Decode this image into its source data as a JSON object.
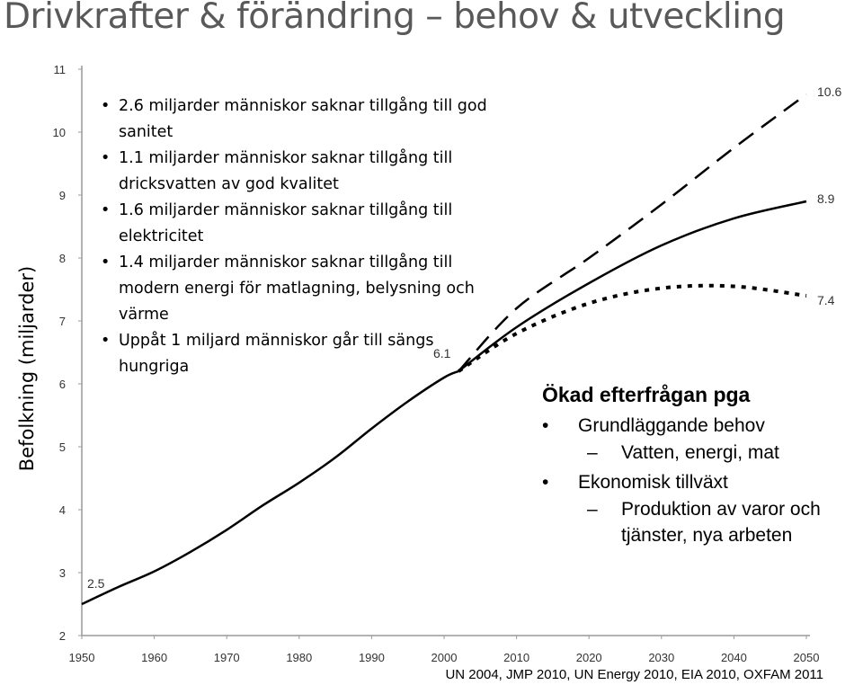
{
  "title": "Drivkrafter & förändring – behov & utveckling",
  "bullets": [
    "2.6 miljarder människor saknar tillgång till god sanitet",
    "1.1 miljarder människor saknar tillgång till dricksvatten av god kvalitet",
    "1.6 miljarder människor saknar tillgång till elektricitet",
    "1.4 miljarder människor saknar tillgång till modern energi för matlagning, belysning och värme",
    "Uppåt 1 miljard människor går till sängs hungriga"
  ],
  "demand": {
    "title": "Ökad efterfrågan pga",
    "items": [
      {
        "label": "Grundläggande behov",
        "sub": "Vatten, energi, mat"
      },
      {
        "label": "Ekonomisk tillväxt",
        "sub": "Produktion av varor och tjänster, nya arbeten"
      }
    ]
  },
  "source": "UN 2004, JMP 2010, UN Energy 2010, EIA 2010, OXFAM 2011",
  "chart_data": {
    "type": "line",
    "title": "",
    "xlabel": "",
    "ylabel": "Befolkning (miljarder)",
    "xlim": [
      1950,
      2050
    ],
    "ylim": [
      2,
      11
    ],
    "x_ticks": [
      1950,
      1960,
      1970,
      1980,
      1990,
      2000,
      2010,
      2020,
      2030,
      2040,
      2050
    ],
    "y_ticks": [
      2,
      3,
      4,
      5,
      6,
      7,
      8,
      9,
      10,
      11
    ],
    "historical": {
      "x": [
        1950,
        1955,
        1960,
        1965,
        1970,
        1975,
        1980,
        1985,
        1990,
        1995,
        2000,
        2002
      ],
      "y": [
        2.5,
        2.77,
        3.02,
        3.33,
        3.68,
        4.07,
        4.43,
        4.83,
        5.29,
        5.72,
        6.1,
        6.2
      ]
    },
    "series": [
      {
        "style": "dashed",
        "x": [
          2002,
          2010,
          2020,
          2030,
          2040,
          2050
        ],
        "y": [
          6.2,
          7.2,
          8.0,
          8.85,
          9.75,
          10.6
        ]
      },
      {
        "style": "solid",
        "x": [
          2002,
          2010,
          2020,
          2030,
          2040,
          2050
        ],
        "y": [
          6.2,
          6.9,
          7.6,
          8.2,
          8.63,
          8.9
        ]
      },
      {
        "style": "dotted",
        "x": [
          2002,
          2010,
          2020,
          2030,
          2040,
          2050
        ],
        "y": [
          6.2,
          6.8,
          7.28,
          7.52,
          7.55,
          7.4
        ]
      }
    ],
    "annotations": [
      {
        "text": "2.5",
        "x": 1950,
        "y": 2.5
      },
      {
        "text": "6.1",
        "x": 2000,
        "y": 6.1
      },
      {
        "text": "10.6",
        "x": 2050,
        "y": 10.6
      },
      {
        "text": "8.9",
        "x": 2050,
        "y": 8.9
      },
      {
        "text": "7.4",
        "x": 2050,
        "y": 7.4
      }
    ],
    "grid": false,
    "colors": {
      "line": "#000000",
      "axis": "#999999",
      "ticklabel": "#333333"
    }
  }
}
